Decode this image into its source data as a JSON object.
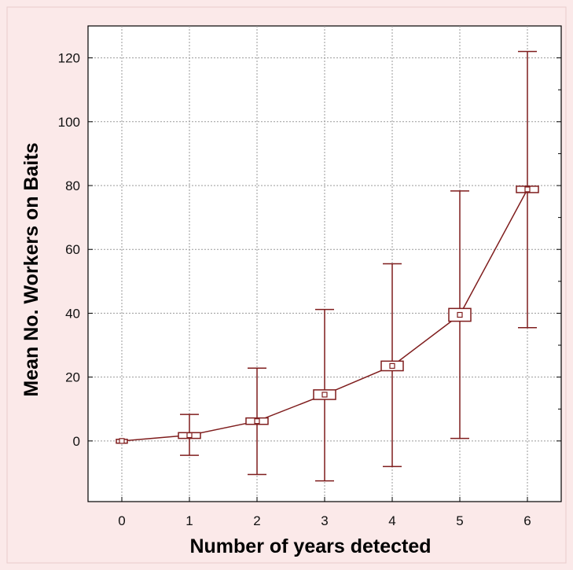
{
  "chart_data": {
    "type": "line",
    "xlabel": "Number of years detected",
    "ylabel": "Mean No. Workers on Baits",
    "x_ticks": [
      "0",
      "1",
      "2",
      "3",
      "4",
      "5",
      "6"
    ],
    "y_ticks": [
      "0",
      "20",
      "40",
      "60",
      "80",
      "100",
      "120"
    ],
    "xlim": [
      -0.5,
      6.5
    ],
    "ylim": [
      -19,
      130
    ],
    "grid": true,
    "series": [
      {
        "x": [
          0,
          1,
          2,
          3,
          4,
          5,
          6
        ],
        "mean": [
          0,
          1.8,
          6.2,
          14.5,
          23.5,
          39.5,
          78.8
        ],
        "box_low": [
          -0.7,
          0.8,
          5.2,
          13.0,
          22.0,
          37.5,
          77.8
        ],
        "box_high": [
          0.5,
          2.6,
          7.2,
          16.0,
          25.0,
          41.5,
          79.8
        ],
        "whisker_low": [
          0,
          -4.5,
          -10.5,
          -12.5,
          -8.0,
          0.8,
          35.5
        ],
        "whisker_high": [
          0,
          8.3,
          22.8,
          41.2,
          55.5,
          78.3,
          122.0
        ]
      }
    ],
    "colors": {
      "series": "#7f1d1d",
      "grid": "#9a9a9a",
      "plot_background": "#ffffff",
      "page_background": "#fbe9e9"
    }
  }
}
